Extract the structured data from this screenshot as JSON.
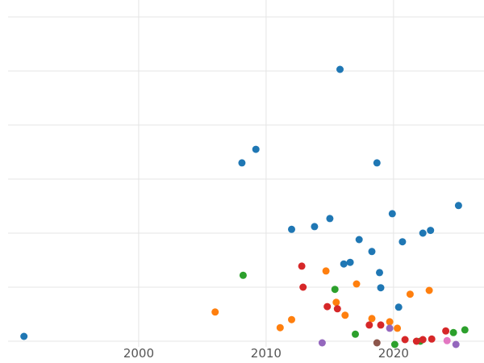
{
  "figure": {
    "background_color": "#ffffff",
    "gridline_color": "#e5e5e5",
    "tick_label_color": "#555555"
  },
  "chart_data": {
    "type": "scatter",
    "title": "",
    "xlabel": "",
    "ylabel": "",
    "grid": true,
    "legend_position": "none",
    "xlim": [
      1989.75,
      2027.1
    ],
    "ylim": [
      -0.403,
      6.313
    ],
    "x_ticks": [
      2000,
      2010,
      2020
    ],
    "y_gridline_values": [
      0,
      1,
      2,
      3,
      4,
      5,
      6
    ],
    "marker_radius": 4.5,
    "series": [
      {
        "name": "series-blue",
        "color": "#1f77b4",
        "points": [
          [
            1991.0,
            0.09
          ],
          [
            2008.1,
            3.3
          ],
          [
            2009.2,
            3.55
          ],
          [
            2012.0,
            2.07
          ],
          [
            2013.8,
            2.12
          ],
          [
            2015.0,
            2.27
          ],
          [
            2015.8,
            5.03
          ],
          [
            2016.1,
            1.43
          ],
          [
            2016.6,
            1.46
          ],
          [
            2017.3,
            1.88
          ],
          [
            2018.3,
            1.66
          ],
          [
            2018.7,
            3.3
          ],
          [
            2018.9,
            1.27
          ],
          [
            2019.0,
            0.99
          ],
          [
            2019.9,
            2.36
          ],
          [
            2020.4,
            0.63
          ],
          [
            2020.7,
            1.84
          ],
          [
            2022.3,
            2.0
          ],
          [
            2022.9,
            2.05
          ],
          [
            2025.1,
            2.51
          ]
        ]
      },
      {
        "name": "series-orange",
        "color": "#ff7f0e",
        "points": [
          [
            2006.0,
            0.54
          ],
          [
            2011.1,
            0.25
          ],
          [
            2012.0,
            0.4
          ],
          [
            2014.7,
            1.3
          ],
          [
            2015.5,
            0.72
          ],
          [
            2016.2,
            0.48
          ],
          [
            2017.1,
            1.06
          ],
          [
            2018.3,
            0.42
          ],
          [
            2019.7,
            0.36
          ],
          [
            2020.3,
            0.24
          ],
          [
            2021.3,
            0.87
          ],
          [
            2022.8,
            0.94
          ]
        ]
      },
      {
        "name": "series-green",
        "color": "#2ca02c",
        "points": [
          [
            2008.2,
            1.22
          ],
          [
            2015.4,
            0.96
          ],
          [
            2017.0,
            0.13
          ],
          [
            2020.1,
            -0.06
          ],
          [
            2022.1,
            0.0
          ],
          [
            2024.7,
            0.16
          ],
          [
            2025.6,
            0.21
          ]
        ]
      },
      {
        "name": "series-red",
        "color": "#d62728",
        "points": [
          [
            2012.8,
            1.39
          ],
          [
            2012.9,
            1.0
          ],
          [
            2014.8,
            0.64
          ],
          [
            2015.6,
            0.6
          ],
          [
            2018.1,
            0.3
          ],
          [
            2019.0,
            0.3
          ],
          [
            2020.9,
            0.03
          ],
          [
            2021.8,
            0.0
          ],
          [
            2022.3,
            0.03
          ],
          [
            2023.0,
            0.04
          ],
          [
            2024.1,
            0.19
          ]
        ]
      },
      {
        "name": "series-purple",
        "color": "#9467bd",
        "points": [
          [
            2014.4,
            -0.03
          ],
          [
            2019.7,
            0.24
          ],
          [
            2024.9,
            -0.06
          ]
        ]
      },
      {
        "name": "series-brown",
        "color": "#8c564b",
        "points": [
          [
            2018.7,
            -0.03
          ]
        ]
      },
      {
        "name": "series-pink",
        "color": "#e377c2",
        "points": [
          [
            2024.2,
            0.01
          ]
        ]
      }
    ]
  }
}
